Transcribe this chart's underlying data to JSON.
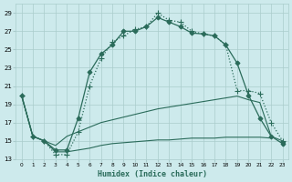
{
  "background_color": "#cdeaec",
  "grid_color": "#aacccc",
  "line_color": "#2a6b5a",
  "xlabel": "Humidex (Indice chaleur)",
  "xlim": [
    -0.5,
    23.5
  ],
  "ylim": [
    13,
    30
  ],
  "yticks": [
    13,
    15,
    17,
    19,
    21,
    23,
    25,
    27,
    29
  ],
  "xticks": [
    0,
    1,
    2,
    3,
    4,
    5,
    6,
    7,
    8,
    9,
    10,
    11,
    12,
    13,
    14,
    15,
    16,
    17,
    18,
    19,
    20,
    21,
    22,
    23
  ],
  "series": {
    "main_solid": {
      "x": [
        0,
        1,
        2,
        3,
        4,
        5,
        6,
        7,
        8,
        9,
        10,
        11,
        12,
        13,
        14,
        15,
        16,
        17,
        18,
        19,
        20,
        21,
        22,
        23
      ],
      "y": [
        20.0,
        15.5,
        15.0,
        14.0,
        14.0,
        17.5,
        22.5,
        24.5,
        25.5,
        27.0,
        27.0,
        27.5,
        28.5,
        28.0,
        27.5,
        26.8,
        26.7,
        26.5,
        25.5,
        23.5,
        20.0,
        17.5,
        15.5,
        14.7
      ],
      "linestyle": "-",
      "marker": "D",
      "markersize": 2.5
    },
    "dotted_plus": {
      "x": [
        0,
        1,
        2,
        3,
        4,
        5,
        6,
        7,
        8,
        9,
        10,
        11,
        12,
        13,
        14,
        15,
        16,
        17,
        18,
        19,
        20,
        21,
        22,
        23
      ],
      "y": [
        20.0,
        15.5,
        15.0,
        13.5,
        13.5,
        16.0,
        21.0,
        24.0,
        25.8,
        26.5,
        27.2,
        27.5,
        29.0,
        28.2,
        28.0,
        27.0,
        26.7,
        26.5,
        25.5,
        20.5,
        20.5,
        20.2,
        17.0,
        15.0
      ],
      "linestyle": ":",
      "marker": "+",
      "markersize": 4
    },
    "upper_flat": {
      "x": [
        0,
        1,
        2,
        3,
        4,
        5,
        6,
        7,
        8,
        9,
        10,
        11,
        12,
        13,
        14,
        15,
        16,
        17,
        18,
        19,
        20,
        21,
        22,
        23
      ],
      "y": [
        20.0,
        15.5,
        15.0,
        14.5,
        15.5,
        16.0,
        16.5,
        17.0,
        17.3,
        17.6,
        17.9,
        18.2,
        18.5,
        18.7,
        18.9,
        19.1,
        19.3,
        19.5,
        19.7,
        19.9,
        19.5,
        19.2,
        15.5,
        15.0
      ],
      "linestyle": "-",
      "marker": null,
      "markersize": 0
    },
    "lower_flat": {
      "x": [
        0,
        1,
        2,
        3,
        4,
        5,
        6,
        7,
        8,
        9,
        10,
        11,
        12,
        13,
        14,
        15,
        16,
        17,
        18,
        19,
        20,
        21,
        22,
        23
      ],
      "y": [
        20.0,
        15.5,
        15.0,
        13.8,
        13.8,
        14.0,
        14.2,
        14.5,
        14.7,
        14.8,
        14.9,
        15.0,
        15.1,
        15.1,
        15.2,
        15.3,
        15.3,
        15.3,
        15.4,
        15.4,
        15.4,
        15.4,
        15.3,
        14.7
      ],
      "linestyle": "-",
      "marker": "v",
      "markersize": 3
    }
  }
}
